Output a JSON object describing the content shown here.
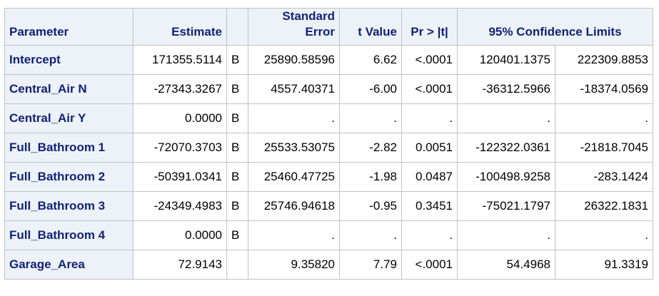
{
  "headers": {
    "parameter": "Parameter",
    "estimate": "Estimate",
    "std_error_line1": "Standard",
    "std_error_line2": "Error",
    "t_value": "t Value",
    "pr_t": "Pr > |t|",
    "ci": "95% Confidence Limits"
  },
  "rows": [
    {
      "parameter": "Intercept",
      "estimate": "171355.5114",
      "flag": "B",
      "std_error": "25890.58596",
      "t_value": "6.62",
      "p_value": "<.0001",
      "ci_lower": "120401.1375",
      "ci_upper": "222309.8853"
    },
    {
      "parameter": "Central_Air N",
      "estimate": "-27343.3267",
      "flag": "B",
      "std_error": "4557.40371",
      "t_value": "-6.00",
      "p_value": "<.0001",
      "ci_lower": "-36312.5966",
      "ci_upper": "-18374.0569"
    },
    {
      "parameter": "Central_Air Y",
      "estimate": "0.0000",
      "flag": "B",
      "std_error": ".",
      "t_value": ".",
      "p_value": ".",
      "ci_lower": ".",
      "ci_upper": "."
    },
    {
      "parameter": "Full_Bathroom 1",
      "estimate": "-72070.3703",
      "flag": "B",
      "std_error": "25533.53075",
      "t_value": "-2.82",
      "p_value": "0.0051",
      "ci_lower": "-122322.0361",
      "ci_upper": "-21818.7045"
    },
    {
      "parameter": "Full_Bathroom 2",
      "estimate": "-50391.0341",
      "flag": "B",
      "std_error": "25460.47725",
      "t_value": "-1.98",
      "p_value": "0.0487",
      "ci_lower": "-100498.9258",
      "ci_upper": "-283.1424"
    },
    {
      "parameter": "Full_Bathroom 3",
      "estimate": "-24349.4983",
      "flag": "B",
      "std_error": "25746.94618",
      "t_value": "-0.95",
      "p_value": "0.3451",
      "ci_lower": "-75021.1797",
      "ci_upper": "26322.1831"
    },
    {
      "parameter": "Full_Bathroom 4",
      "estimate": "0.0000",
      "flag": "B",
      "std_error": ".",
      "t_value": ".",
      "p_value": ".",
      "ci_lower": ".",
      "ci_upper": "."
    },
    {
      "parameter": "Garage_Area",
      "estimate": "72.9143",
      "flag": "",
      "std_error": "9.35820",
      "t_value": "7.79",
      "p_value": "<.0001",
      "ci_lower": "54.4968",
      "ci_upper": "91.3319"
    }
  ]
}
